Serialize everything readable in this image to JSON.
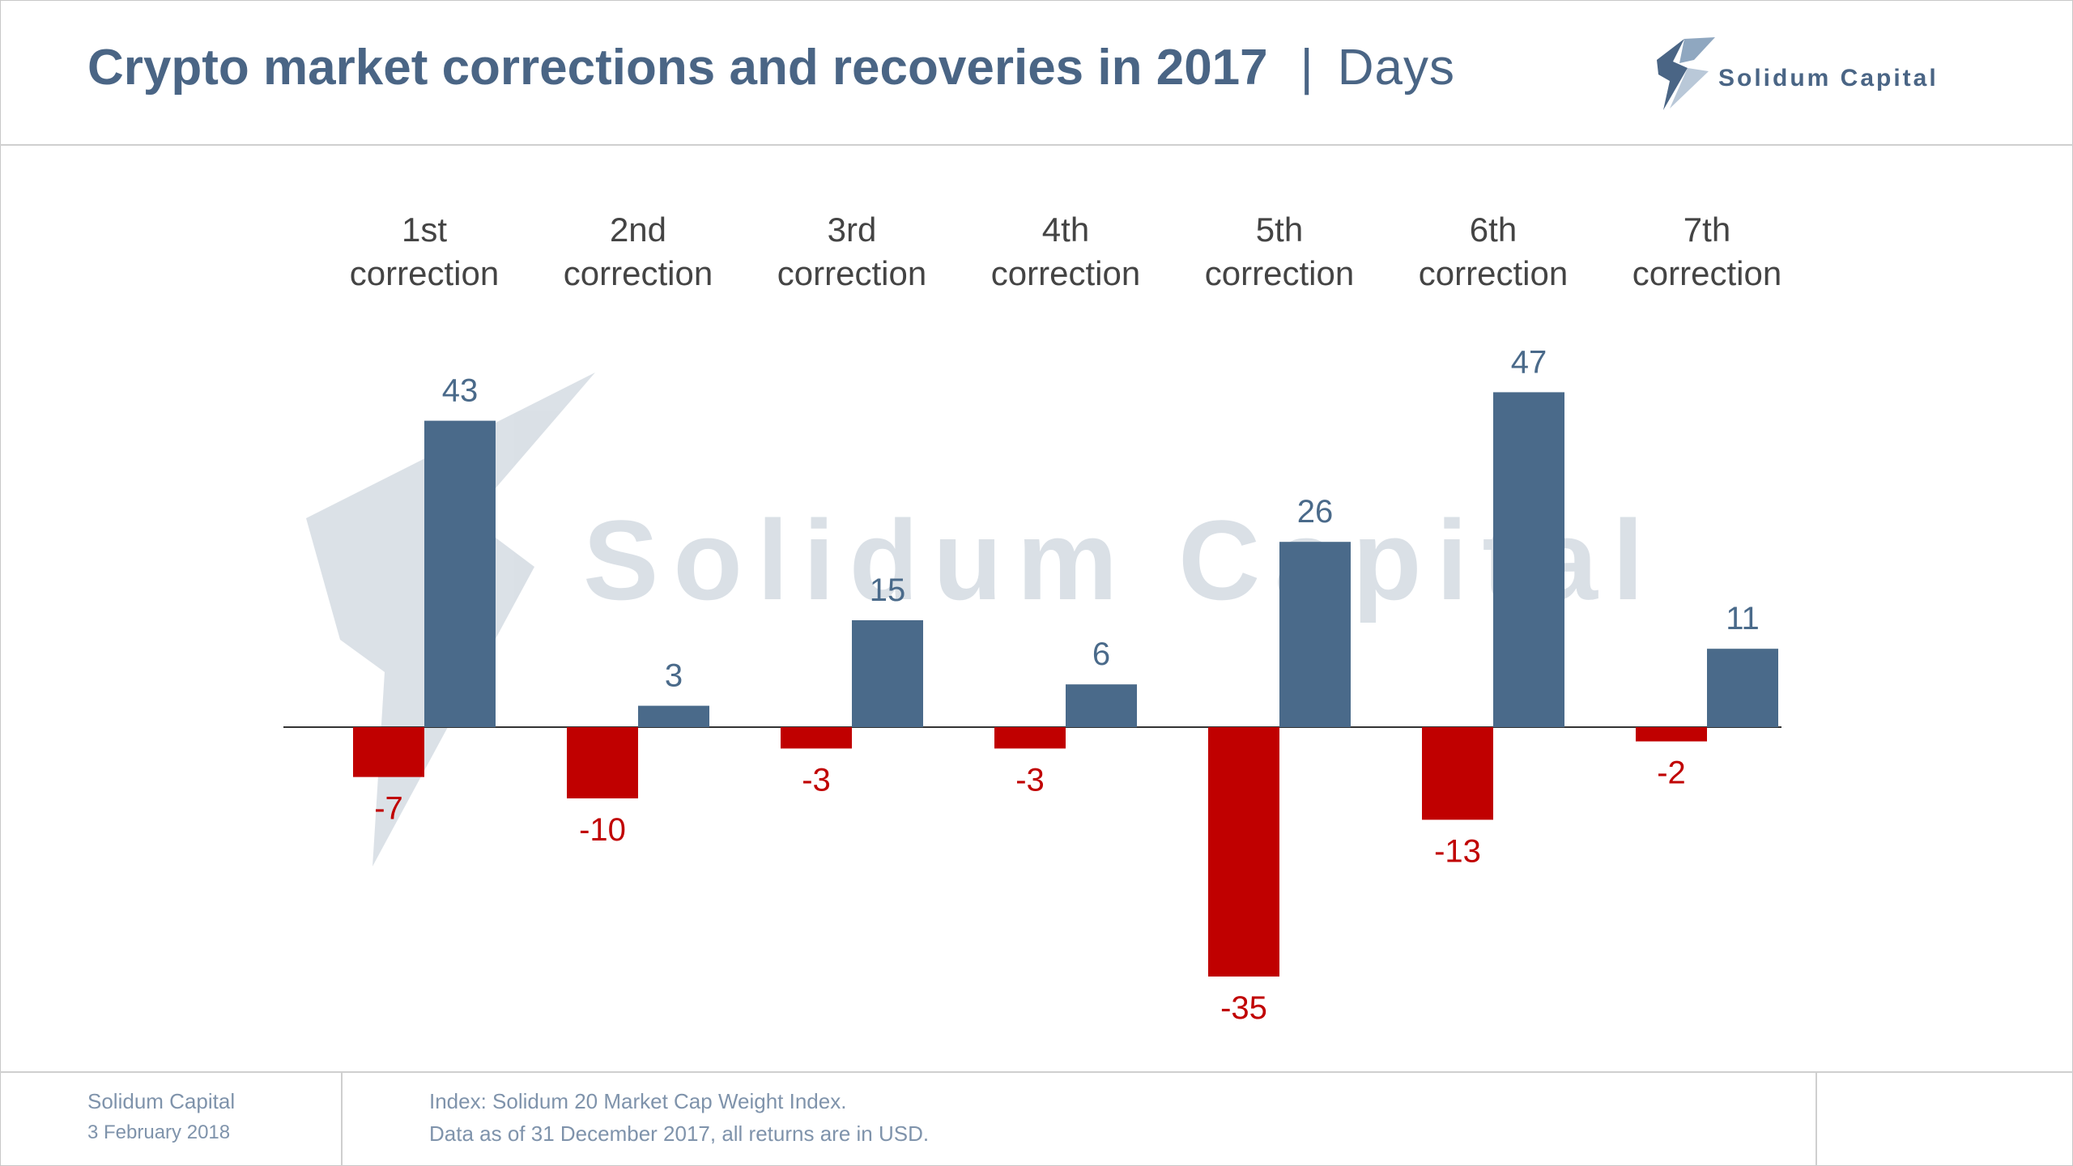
{
  "header": {
    "title": "Crypto market corrections and recoveries in 2017",
    "separator": "|",
    "unit": "Days",
    "brand": "Solidum Capital"
  },
  "watermark": "Solidum Capital",
  "footer": {
    "company": "Solidum Capital",
    "date": "3 February 2018",
    "note_line1": "Index: Solidum 20 Market Cap Weight Index.",
    "note_line2": "Data as of 31 December 2017, all returns are in USD."
  },
  "colors": {
    "correction": "#c00000",
    "recovery": "#4a6a8a",
    "title": "#4a6585"
  },
  "chart_data": {
    "type": "bar",
    "categories": [
      [
        "1st",
        "correction"
      ],
      [
        "2nd",
        "correction"
      ],
      [
        "3rd",
        "correction"
      ],
      [
        "4th",
        "correction"
      ],
      [
        "5th",
        "correction"
      ],
      [
        "6th",
        "correction"
      ],
      [
        "7th",
        "correction"
      ]
    ],
    "series": [
      {
        "values": [
          -7,
          -10,
          -3,
          -3,
          -35,
          -13,
          -2
        ]
      },
      {
        "values": [
          43,
          3,
          15,
          6,
          26,
          47,
          11
        ]
      }
    ],
    "ylim": [
      -40,
      60
    ],
    "grid": false,
    "legend": "none"
  }
}
